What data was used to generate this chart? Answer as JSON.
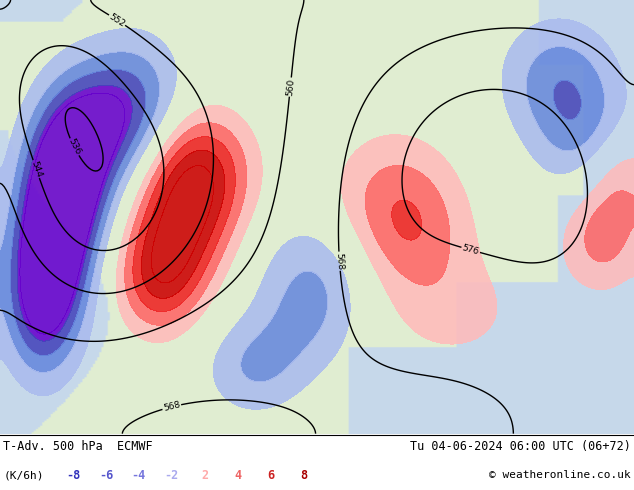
{
  "title_left": "T-Adv. 500 hPa  ECMWF",
  "title_right": "Tu 04-06-2024 06:00 UTC (06+72)",
  "subtitle_left": "(K/6h)",
  "copyright": "© weatheronline.co.uk",
  "legend_values": [
    "-8",
    "-6",
    "-4",
    "-2",
    "2",
    "4",
    "6",
    "8"
  ],
  "legend_colors": [
    "#3333bb",
    "#5555cc",
    "#7777dd",
    "#aaaaee",
    "#ffaaaa",
    "#ee6666",
    "#cc2222",
    "#aa0000"
  ],
  "background_color": "#ffffff",
  "fig_width": 6.34,
  "fig_height": 4.9,
  "dpi": 100
}
